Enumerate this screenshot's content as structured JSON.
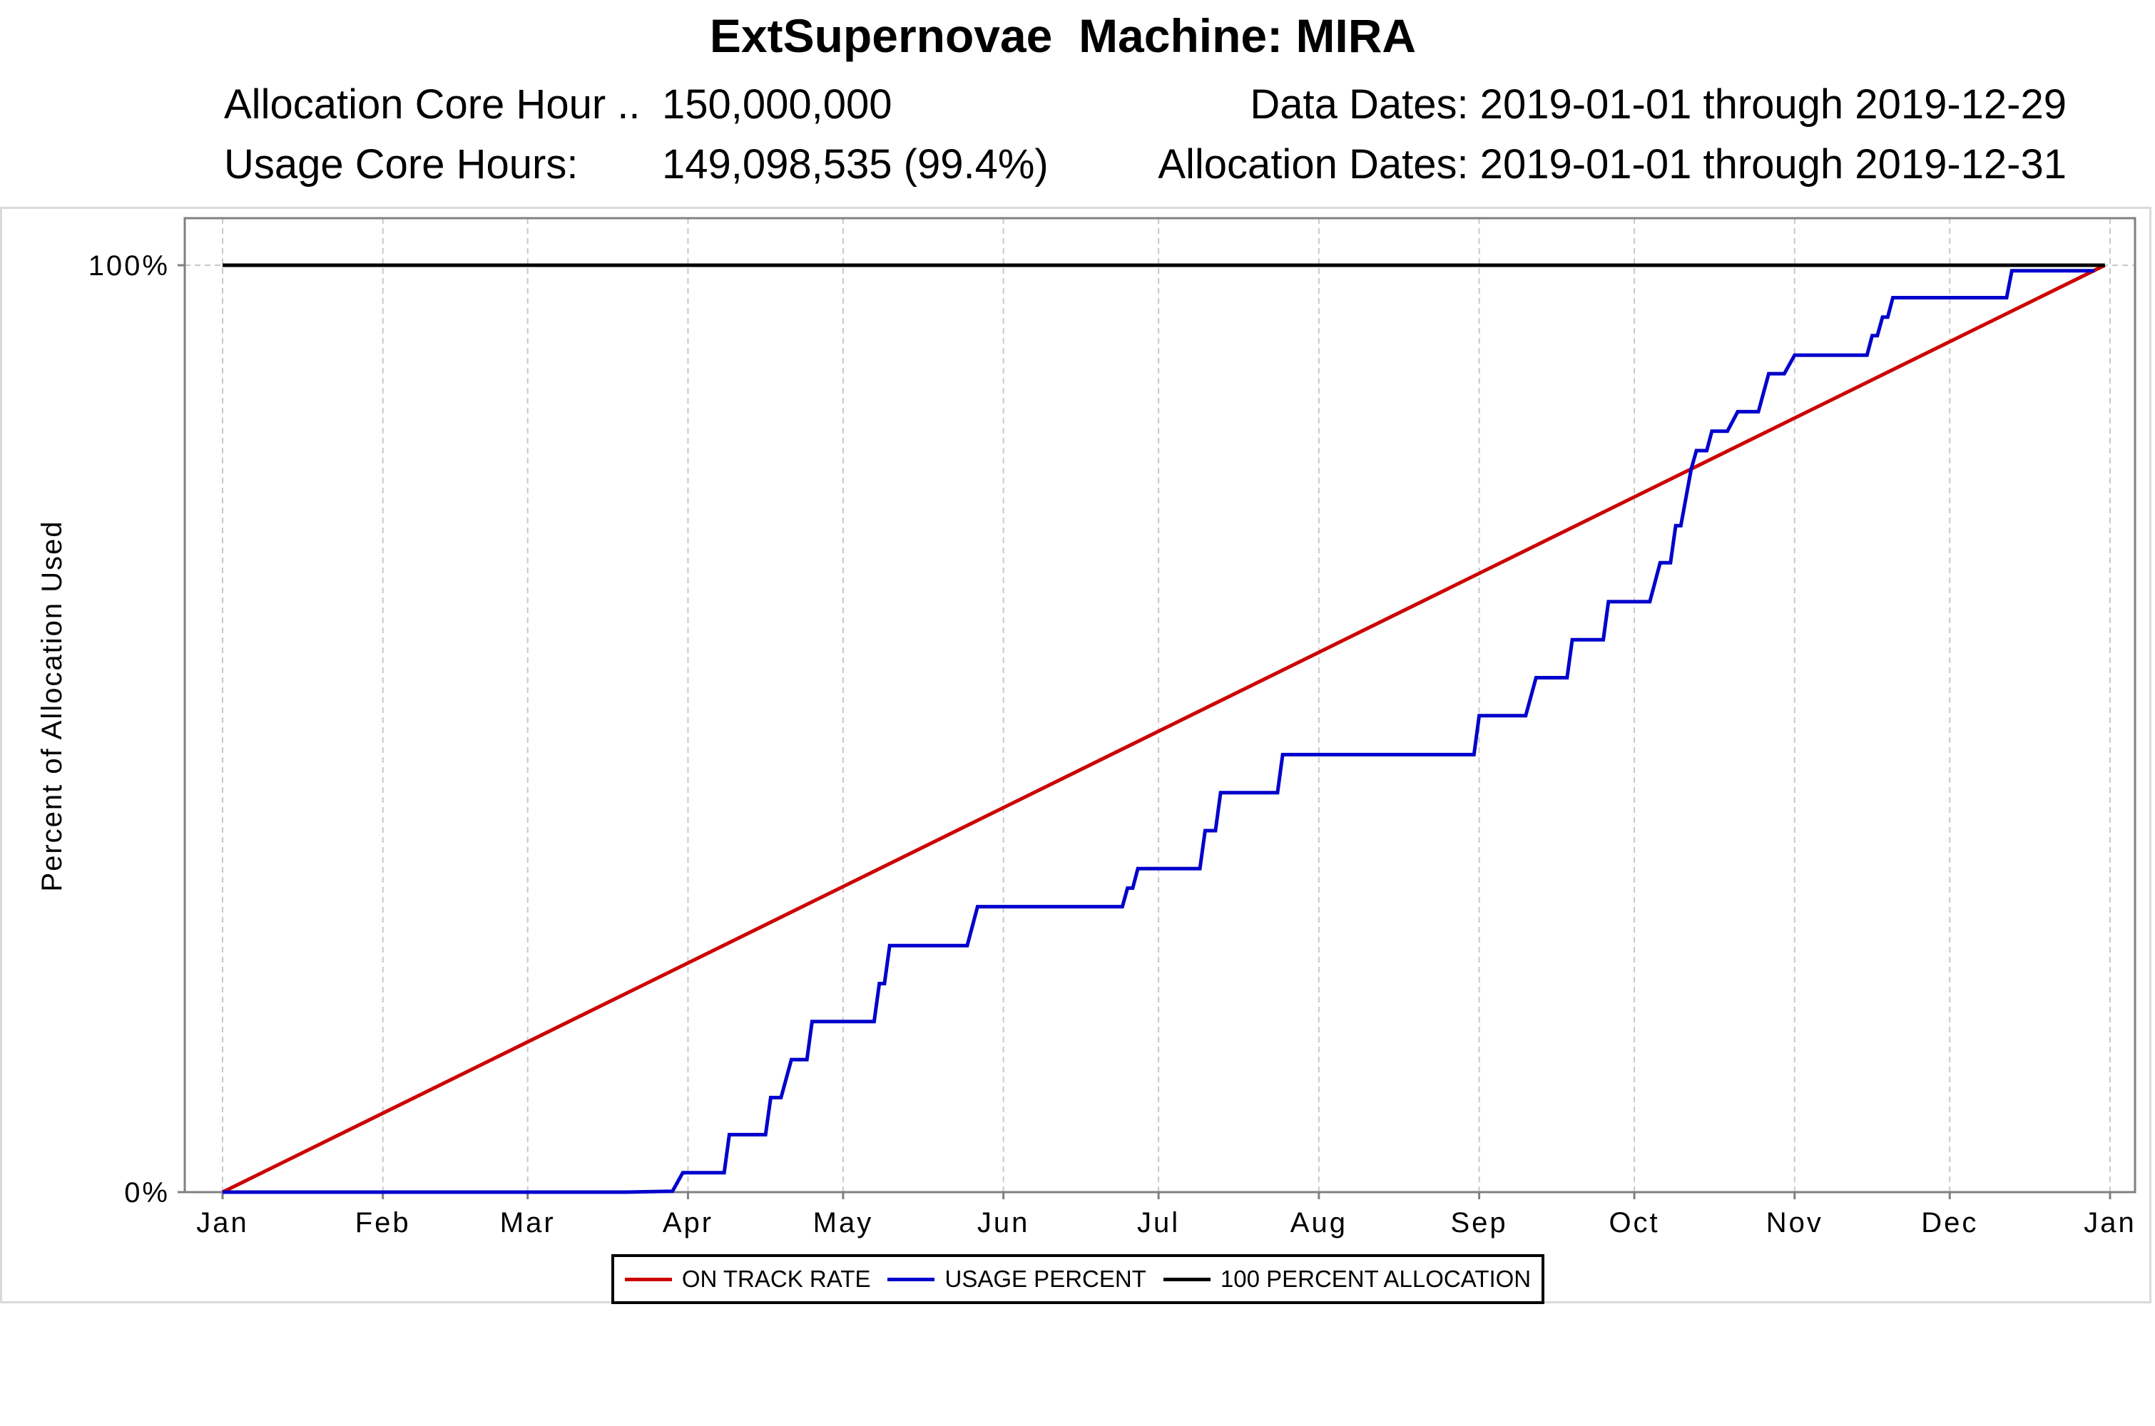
{
  "header": {
    "title": "ExtSupernovae  Machine: MIRA",
    "allocation_label": "Allocation Core Hour ..",
    "allocation_value": "150,000,000",
    "usage_label": "Usage Core Hours:",
    "usage_value": "149,098,535 (99.4%)",
    "data_dates": "Data Dates: 2019-01-01 through 2019-12-29",
    "allocation_dates": "Allocation Dates: 2019-01-01 through 2019-12-31"
  },
  "colors": {
    "on_track": "#cc0000",
    "usage": "#0000cc",
    "hundred": "#000000",
    "grid": "#c8c8c8",
    "axis": "#808080"
  },
  "chart_data": {
    "type": "line",
    "title": "ExtSupernovae  Machine: MIRA",
    "xlabel": "",
    "ylabel": "Percent of Allocation Used",
    "x_tick_labels": [
      "Jan",
      "Feb",
      "Mar",
      "Apr",
      "May",
      "Jun",
      "Jul",
      "Aug",
      "Sep",
      "Oct",
      "Nov",
      "Dec",
      "Jan"
    ],
    "x_ticks": [
      "2019-01-01",
      "2019-02-01",
      "2019-03-01",
      "2019-04-01",
      "2019-05-01",
      "2019-06-01",
      "2019-07-01",
      "2019-08-01",
      "2019-09-01",
      "2019-10-01",
      "2019-11-01",
      "2019-12-01",
      "2020-01-01"
    ],
    "y_ticks": [
      {
        "value": 0,
        "label": "0%"
      },
      {
        "value": 100,
        "label": "100%"
      }
    ],
    "xlim": [
      "2019-01-01",
      "2020-01-01"
    ],
    "ylim": [
      -4,
      106
    ],
    "grid": true,
    "legend_position": "bottom",
    "series": [
      {
        "name": "ON TRACK RATE",
        "color_key": "on_track",
        "points": [
          [
            "2019-01-01",
            0
          ],
          [
            "2019-12-31",
            100
          ]
        ]
      },
      {
        "name": "USAGE PERCENT",
        "color_key": "usage",
        "points": [
          [
            "2019-01-01",
            0
          ],
          [
            "2019-03-20",
            0
          ],
          [
            "2019-03-29",
            0.1
          ],
          [
            "2019-03-31",
            2.1
          ],
          [
            "2019-04-08",
            2.1
          ],
          [
            "2019-04-09",
            6.2
          ],
          [
            "2019-04-16",
            6.2
          ],
          [
            "2019-04-17",
            10.2
          ],
          [
            "2019-04-19",
            10.2
          ],
          [
            "2019-04-21",
            14.3
          ],
          [
            "2019-04-24",
            14.3
          ],
          [
            "2019-04-25",
            18.4
          ],
          [
            "2019-05-07",
            18.4
          ],
          [
            "2019-05-08",
            22.5
          ],
          [
            "2019-05-09",
            22.5
          ],
          [
            "2019-05-10",
            26.6
          ],
          [
            "2019-05-25",
            26.6
          ],
          [
            "2019-05-27",
            30.8
          ],
          [
            "2019-06-24",
            30.8
          ],
          [
            "2019-06-25",
            32.8
          ],
          [
            "2019-06-26",
            32.8
          ],
          [
            "2019-06-27",
            34.9
          ],
          [
            "2019-07-09",
            34.9
          ],
          [
            "2019-07-10",
            39.0
          ],
          [
            "2019-07-12",
            39.0
          ],
          [
            "2019-07-13",
            43.1
          ],
          [
            "2019-07-24",
            43.1
          ],
          [
            "2019-07-25",
            47.2
          ],
          [
            "2019-08-31",
            47.2
          ],
          [
            "2019-09-01",
            51.4
          ],
          [
            "2019-09-10",
            51.4
          ],
          [
            "2019-09-12",
            55.5
          ],
          [
            "2019-09-18",
            55.5
          ],
          [
            "2019-09-19",
            59.6
          ],
          [
            "2019-09-25",
            59.6
          ],
          [
            "2019-09-26",
            63.7
          ],
          [
            "2019-10-04",
            63.7
          ],
          [
            "2019-10-06",
            67.9
          ],
          [
            "2019-10-08",
            67.9
          ],
          [
            "2019-10-09",
            71.9
          ],
          [
            "2019-10-10",
            71.9
          ],
          [
            "2019-10-12",
            78.0
          ],
          [
            "2019-10-13",
            80.0
          ],
          [
            "2019-10-15",
            80.0
          ],
          [
            "2019-10-16",
            82.1
          ],
          [
            "2019-10-19",
            82.1
          ],
          [
            "2019-10-21",
            84.2
          ],
          [
            "2019-10-25",
            84.2
          ],
          [
            "2019-10-27",
            88.3
          ],
          [
            "2019-10-30",
            88.3
          ],
          [
            "2019-11-01",
            90.3
          ],
          [
            "2019-11-15",
            90.3
          ],
          [
            "2019-11-16",
            92.4
          ],
          [
            "2019-11-17",
            92.4
          ],
          [
            "2019-11-18",
            94.4
          ],
          [
            "2019-11-19",
            94.4
          ],
          [
            "2019-11-20",
            96.5
          ],
          [
            "2019-12-12",
            96.5
          ],
          [
            "2019-12-13",
            99.4
          ],
          [
            "2019-12-29",
            99.4
          ]
        ]
      },
      {
        "name": "100 PERCENT ALLOCATION",
        "color_key": "hundred",
        "points": [
          [
            "2019-01-01",
            100
          ],
          [
            "2019-12-31",
            100
          ]
        ]
      }
    ]
  }
}
